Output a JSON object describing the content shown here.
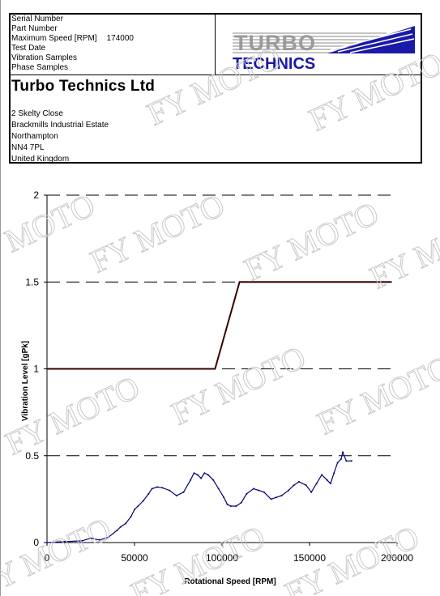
{
  "header": {
    "fields": [
      {
        "label": "Serial Number",
        "value": ""
      },
      {
        "label": "Part Number",
        "value": ""
      },
      {
        "label": "Maximum Speed [RPM]",
        "value": "174000"
      },
      {
        "label": "Test Date",
        "value": ""
      },
      {
        "label": "Vibration Samples",
        "value": ""
      },
      {
        "label": "Phase Samples",
        "value": ""
      }
    ],
    "logo_line1": "TURBO",
    "logo_line2": "TECHNICS",
    "company": "Turbo Technics Ltd",
    "address": [
      "2 Skelty Close",
      "Brackmills Industrial Estate",
      "Northampton",
      "NN4 7PL",
      "United Kingdom"
    ]
  },
  "watermark_text": "FY MOTO",
  "colors": {
    "limit_line": "#3a0000",
    "vibration_line": "#00007a",
    "gridline": "#000000",
    "logo_gray": "#9a9a9a",
    "logo_blue": "#1a1aa8"
  },
  "chart_data": {
    "type": "line",
    "xlabel": "Rotational Speed [RPM]",
    "ylabel": "Vibration Level [gPk]",
    "xlim": [
      0,
      200000
    ],
    "ylim": [
      0,
      2
    ],
    "x_ticks": [
      "0",
      "50000",
      "100000",
      "150000",
      "200000"
    ],
    "y_ticks": [
      "0",
      "0.5",
      "1",
      "1.5",
      "2"
    ],
    "grid": "horizontal dashed",
    "series": [
      {
        "kind": "limit",
        "x": [
          0,
          96000,
          110000,
          197000
        ],
        "y": [
          1.0,
          1.0,
          1.5,
          1.5
        ]
      },
      {
        "kind": "measured",
        "x": [
          0,
          10000,
          20000,
          25000,
          30000,
          35000,
          40000,
          42000,
          45000,
          48000,
          50000,
          52000,
          55000,
          58000,
          60000,
          63000,
          66000,
          70000,
          74000,
          78000,
          82000,
          84000,
          86000,
          88000,
          90000,
          92000,
          95000,
          98000,
          101000,
          103000,
          105000,
          108000,
          111000,
          114000,
          118000,
          121000,
          124000,
          128000,
          131000,
          134000,
          138000,
          141000,
          144000,
          148000,
          151000,
          154000,
          157000,
          160000,
          162000,
          164000,
          166000,
          168000,
          169000,
          171000,
          174000
        ],
        "y": [
          0.0,
          0.005,
          0.01,
          0.025,
          0.015,
          0.03,
          0.07,
          0.09,
          0.11,
          0.15,
          0.19,
          0.21,
          0.24,
          0.28,
          0.31,
          0.32,
          0.315,
          0.3,
          0.27,
          0.29,
          0.36,
          0.4,
          0.39,
          0.37,
          0.4,
          0.39,
          0.36,
          0.31,
          0.26,
          0.22,
          0.21,
          0.21,
          0.23,
          0.28,
          0.31,
          0.3,
          0.29,
          0.25,
          0.26,
          0.27,
          0.3,
          0.33,
          0.35,
          0.33,
          0.29,
          0.34,
          0.39,
          0.36,
          0.34,
          0.4,
          0.46,
          0.48,
          0.52,
          0.47,
          0.47
        ]
      }
    ]
  }
}
